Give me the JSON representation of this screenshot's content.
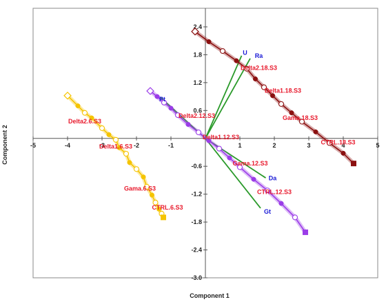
{
  "chart_data": {
    "type": "scatter",
    "title": "",
    "xlabel": "Component 1",
    "ylabel": "Component 2",
    "xlim": [
      -5,
      5
    ],
    "ylim": [
      -3.0,
      2.8
    ],
    "x_ticks": [
      {
        "value": -5,
        "label": "-5"
      },
      {
        "value": -4,
        "label": "-4"
      },
      {
        "value": -3,
        "label": "-3"
      },
      {
        "value": -2,
        "label": "-2"
      },
      {
        "value": -1,
        "label": "-1"
      },
      {
        "value": 0,
        "label": "0"
      },
      {
        "value": 1,
        "label": "1"
      },
      {
        "value": 2,
        "label": "2"
      },
      {
        "value": 3,
        "label": "3"
      },
      {
        "value": 4,
        "label": "4"
      },
      {
        "value": 5,
        "label": "5"
      }
    ],
    "y_ticks": [
      {
        "value": 2.4,
        "label": "2.4"
      },
      {
        "value": 1.8,
        "label": "1.8"
      },
      {
        "value": 1.2,
        "label": "1.2"
      },
      {
        "value": 0.6,
        "label": "0.6"
      },
      {
        "value": -0.6,
        "label": "-0.6"
      },
      {
        "value": -1.2,
        "label": "-1.2"
      },
      {
        "value": -1.8,
        "label": "-1.8"
      },
      {
        "value": -2.4,
        "label": "-2.4"
      },
      {
        "value": -3.0,
        "label": "-3.0"
      }
    ],
    "groups": [
      {
        "color": "#f5c400",
        "points": [
          [
            -4.0,
            0.92
          ],
          [
            -3.7,
            0.7
          ],
          [
            -3.5,
            0.55
          ],
          [
            -3.3,
            0.44
          ],
          [
            -3.0,
            0.22
          ],
          [
            -2.8,
            0.08
          ],
          [
            -2.6,
            -0.03
          ],
          [
            -2.5,
            -0.2
          ],
          [
            -2.3,
            -0.33
          ],
          [
            -2.2,
            -0.52
          ],
          [
            -2.0,
            -0.66
          ],
          [
            -1.8,
            -0.83
          ],
          [
            -1.7,
            -1.04
          ],
          [
            -1.55,
            -1.22
          ],
          [
            -1.45,
            -1.38
          ],
          [
            -1.35,
            -1.52
          ],
          [
            -1.27,
            -1.62
          ],
          [
            -1.22,
            -1.7
          ]
        ],
        "labels": [
          {
            "text": "Delta2.6.S3",
            "x": -3.5,
            "y": 0.32
          },
          {
            "text": "Delta1.6.S3",
            "x": -2.6,
            "y": -0.22
          },
          {
            "text": "Gama.6.S3",
            "x": -1.9,
            "y": -1.12
          },
          {
            "text": "CTRL.6.S3",
            "x": -1.1,
            "y": -1.53
          }
        ]
      },
      {
        "color": "#9b3de8",
        "points": [
          [
            -1.6,
            1.02
          ],
          [
            -1.4,
            0.9
          ],
          [
            -1.2,
            0.77
          ],
          [
            -1.0,
            0.65
          ],
          [
            -0.8,
            0.5
          ],
          [
            -0.5,
            0.3
          ],
          [
            -0.2,
            0.13
          ],
          [
            0.1,
            -0.05
          ],
          [
            0.4,
            -0.22
          ],
          [
            0.7,
            -0.42
          ],
          [
            1.0,
            -0.62
          ],
          [
            1.4,
            -0.88
          ],
          [
            1.8,
            -1.12
          ],
          [
            2.2,
            -1.4
          ],
          [
            2.6,
            -1.7
          ],
          [
            2.9,
            -2.02
          ]
        ],
        "labels": [
          {
            "text": "Pt",
            "x": -1.25,
            "y": 0.8,
            "color": "#1a1ad6"
          },
          {
            "text": "Delta2.12.S3",
            "x": -0.25,
            "y": 0.44
          },
          {
            "text": "Delta1.12.S3",
            "x": 0.45,
            "y": -0.02
          },
          {
            "text": "Gama.12.S3",
            "x": 1.3,
            "y": -0.58
          },
          {
            "text": "CTRL.12.S3",
            "x": 2.0,
            "y": -1.2
          }
        ]
      },
      {
        "color": "#8b1010",
        "points": [
          [
            -0.3,
            2.3
          ],
          [
            0.1,
            2.08
          ],
          [
            0.5,
            1.88
          ],
          [
            0.9,
            1.67
          ],
          [
            1.2,
            1.5
          ],
          [
            1.45,
            1.28
          ],
          [
            1.7,
            1.1
          ],
          [
            1.95,
            0.92
          ],
          [
            2.2,
            0.74
          ],
          [
            2.5,
            0.55
          ],
          [
            2.8,
            0.36
          ],
          [
            3.2,
            0.14
          ],
          [
            3.6,
            -0.1
          ],
          [
            4.0,
            -0.32
          ],
          [
            4.3,
            -0.54
          ]
        ],
        "labels": [
          {
            "text": "U",
            "x": 1.15,
            "y": 1.8,
            "color": "#1a1ad6"
          },
          {
            "text": "Ra",
            "x": 1.55,
            "y": 1.73,
            "color": "#1a1ad6"
          },
          {
            "text": "Delta2.18.S3",
            "x": 1.55,
            "y": 1.47
          },
          {
            "text": "Delta1.18.S3",
            "x": 2.25,
            "y": 0.98
          },
          {
            "text": "Gama.18.S3",
            "x": 2.75,
            "y": 0.4
          },
          {
            "text": "CTRL.18.S3",
            "x": 3.85,
            "y": -0.13
          }
        ]
      }
    ],
    "loadings": {
      "color": "#2a9a2a",
      "vectors": [
        {
          "name": "U",
          "x": 1.05,
          "y": 1.78
        },
        {
          "name": "Ra",
          "x": 1.3,
          "y": 1.72
        },
        {
          "name": "Pt",
          "x": -1.3,
          "y": 0.88
        },
        {
          "name": "Da",
          "x": 1.75,
          "y": -0.85
        },
        {
          "name": "Gt",
          "x": 1.6,
          "y": -1.5
        }
      ],
      "labels": [
        {
          "text": "Da",
          "x": 1.95,
          "y": -0.9
        },
        {
          "text": "Gt",
          "x": 1.8,
          "y": -1.62
        }
      ]
    }
  }
}
